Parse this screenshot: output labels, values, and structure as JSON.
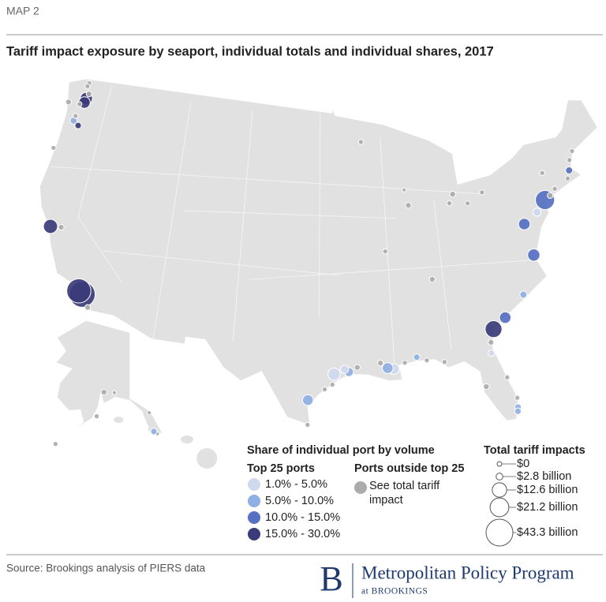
{
  "header": {
    "label": "MAP 2",
    "title": "Tariff impact exposure by seaport, individual totals and individual shares, 2017"
  },
  "map": {
    "ports": [
      {
        "lon": -122.5,
        "lat": 48.75,
        "impact": 1.5,
        "share_class": null
      },
      {
        "lon": -122.6,
        "lat": 48.5,
        "impact": 1.5,
        "share_class": null
      },
      {
        "lon": -122.2,
        "lat": 47.98,
        "impact": 2,
        "share_class": null
      },
      {
        "lon": -122.35,
        "lat": 47.6,
        "impact": 9,
        "share_class": 3
      },
      {
        "lon": -122.43,
        "lat": 47.27,
        "impact": 8,
        "share_class": 3
      },
      {
        "lon": -122.9,
        "lat": 47.05,
        "impact": 1.5,
        "share_class": null
      },
      {
        "lon": -124.1,
        "lat": 46.97,
        "impact": 2,
        "share_class": null
      },
      {
        "lon": -122.95,
        "lat": 46.13,
        "impact": 1.5,
        "share_class": null
      },
      {
        "lon": -123.0,
        "lat": 45.75,
        "impact": 3,
        "share_class": 1
      },
      {
        "lon": -122.4,
        "lat": 45.5,
        "impact": 2.5,
        "share_class": 3
      },
      {
        "lon": -124.2,
        "lat": 43.4,
        "impact": 1.5,
        "share_class": null
      },
      {
        "lon": -121.3,
        "lat": 37.95,
        "impact": 2,
        "share_class": null
      },
      {
        "lon": -122.3,
        "lat": 37.8,
        "impact": 12,
        "share_class": 3
      },
      {
        "lon": -118.27,
        "lat": 33.74,
        "impact": 35,
        "share_class": 3
      },
      {
        "lon": -117.9,
        "lat": 33.55,
        "impact": 40,
        "share_class": 3
      },
      {
        "lon": -117.17,
        "lat": 32.7,
        "impact": 2,
        "share_class": null
      },
      {
        "lon": -92.1,
        "lat": 46.78,
        "impact": 1.5,
        "share_class": null
      },
      {
        "lon": -87.9,
        "lat": 43.04,
        "impact": 1,
        "share_class": null
      },
      {
        "lon": -87.6,
        "lat": 41.88,
        "impact": 2,
        "share_class": null
      },
      {
        "lon": -83.05,
        "lat": 42.33,
        "impact": 2,
        "share_class": null
      },
      {
        "lon": -83.5,
        "lat": 41.7,
        "impact": 1.5,
        "share_class": null
      },
      {
        "lon": -81.7,
        "lat": 41.5,
        "impact": 1.5,
        "share_class": null
      },
      {
        "lon": -80.1,
        "lat": 42.13,
        "impact": 1.5,
        "share_class": null
      },
      {
        "lon": -90.2,
        "lat": 38.63,
        "impact": 1.5,
        "share_class": null
      },
      {
        "lon": -86.0,
        "lat": 36.3,
        "impact": 2,
        "share_class": null
      },
      {
        "lon": -73.75,
        "lat": 42.65,
        "impact": 1.5,
        "share_class": null
      },
      {
        "lon": -70.25,
        "lat": 43.66,
        "impact": 1.5,
        "share_class": null
      },
      {
        "lon": -70.75,
        "lat": 43.08,
        "impact": 1.5,
        "share_class": null
      },
      {
        "lon": -71.05,
        "lat": 42.35,
        "impact": 3,
        "share_class": 2
      },
      {
        "lon": -71.4,
        "lat": 41.8,
        "impact": 1.5,
        "share_class": null
      },
      {
        "lon": -72.9,
        "lat": 41.3,
        "impact": 1.5,
        "share_class": null
      },
      {
        "lon": -73.5,
        "lat": 40.9,
        "impact": 2,
        "share_class": null
      },
      {
        "lon": -74.1,
        "lat": 40.67,
        "impact": 22,
        "share_class": 2
      },
      {
        "lon": -75.13,
        "lat": 39.93,
        "impact": 4,
        "share_class": 0
      },
      {
        "lon": -76.58,
        "lat": 39.27,
        "impact": 8,
        "share_class": 2
      },
      {
        "lon": -76.3,
        "lat": 36.9,
        "impact": 9,
        "share_class": 2
      },
      {
        "lon": -77.95,
        "lat": 34.2,
        "impact": 3,
        "share_class": 1
      },
      {
        "lon": -79.92,
        "lat": 32.78,
        "impact": 8,
        "share_class": 2
      },
      {
        "lon": -81.1,
        "lat": 32.08,
        "impact": 17,
        "share_class": 3
      },
      {
        "lon": -81.5,
        "lat": 31.15,
        "impact": 2,
        "share_class": null
      },
      {
        "lon": -81.6,
        "lat": 30.35,
        "impact": 2.5,
        "share_class": 0
      },
      {
        "lon": -80.6,
        "lat": 28.4,
        "impact": 1.5,
        "share_class": null
      },
      {
        "lon": -80.05,
        "lat": 26.77,
        "impact": 1.5,
        "share_class": null
      },
      {
        "lon": -80.12,
        "lat": 26.08,
        "impact": 2.5,
        "share_class": 1
      },
      {
        "lon": -80.18,
        "lat": 25.77,
        "impact": 2.5,
        "share_class": 1
      },
      {
        "lon": -82.45,
        "lat": 27.95,
        "impact": 2,
        "share_class": null
      },
      {
        "lon": -85.7,
        "lat": 30.15,
        "impact": 1.5,
        "share_class": null
      },
      {
        "lon": -87.2,
        "lat": 30.4,
        "impact": 1.5,
        "share_class": null
      },
      {
        "lon": -88.04,
        "lat": 30.7,
        "impact": 2.5,
        "share_class": 1
      },
      {
        "lon": -89.1,
        "lat": 30.36,
        "impact": 1.5,
        "share_class": null
      },
      {
        "lon": -90.07,
        "lat": 29.95,
        "impact": 7,
        "share_class": 0
      },
      {
        "lon": -90.6,
        "lat": 30.05,
        "impact": 7,
        "share_class": 1
      },
      {
        "lon": -91.2,
        "lat": 30.45,
        "impact": 2,
        "share_class": null
      },
      {
        "lon": -93.2,
        "lat": 30.2,
        "impact": 2,
        "share_class": null
      },
      {
        "lon": -93.93,
        "lat": 29.87,
        "impact": 5,
        "share_class": 1
      },
      {
        "lon": -94.3,
        "lat": 30.08,
        "impact": 4,
        "share_class": 0
      },
      {
        "lon": -95.2,
        "lat": 29.73,
        "impact": 9,
        "share_class": 0
      },
      {
        "lon": -95.35,
        "lat": 28.95,
        "impact": 1.5,
        "share_class": null
      },
      {
        "lon": -96.0,
        "lat": 28.6,
        "impact": 1.5,
        "share_class": null
      },
      {
        "lon": -97.4,
        "lat": 27.8,
        "impact": 7,
        "share_class": 1
      },
      {
        "lon": -97.4,
        "lat": 25.95,
        "impact": 1.5,
        "share_class": null
      }
    ],
    "alaska_ports": [
      {
        "lon": -149.9,
        "lat": 61.2,
        "impact": 2,
        "share_class": null
      },
      {
        "lon": -146.35,
        "lat": 61.13,
        "impact": 1,
        "share_class": null
      },
      {
        "lon": -152.4,
        "lat": 57.8,
        "impact": 1.5,
        "share_class": null
      },
      {
        "lon": -166.5,
        "lat": 53.9,
        "impact": 1.5,
        "share_class": null
      },
      {
        "lon": -134.4,
        "lat": 58.3,
        "impact": 1,
        "share_class": null
      },
      {
        "lon": -131.6,
        "lat": 55.34,
        "impact": 1,
        "share_class": null
      }
    ],
    "hawaii_ports": [
      {
        "lon": -157.9,
        "lat": 21.3,
        "impact": 2.5,
        "share_class": 1
      }
    ],
    "legend": {
      "title": "Share of individual port by volume",
      "top_heading": "Top 25 ports",
      "classes": [
        {
          "label": "1.0% - 5.0%",
          "color": "#cfd9ee"
        },
        {
          "label": "5.0% - 10.0%",
          "color": "#8fb0e2"
        },
        {
          "label": "10.0% - 15.0%",
          "color": "#5670c2"
        },
        {
          "label": "15.0% - 30.0%",
          "color": "#3b3b7a"
        }
      ],
      "outside_heading": "Ports outside top 25",
      "outside_label": "See total tariff impact",
      "outside_color": "#ababab",
      "size_title": "Total tariff impacts",
      "sizes": [
        {
          "value": 0,
          "label": "$0"
        },
        {
          "value": 2.8,
          "label": "$2.8 billion"
        },
        {
          "value": 12.6,
          "label": "$12.6 billion"
        },
        {
          "value": 21.2,
          "label": "$21.2 billion"
        },
        {
          "value": 43.3,
          "label": "$43.3 billion"
        }
      ]
    }
  },
  "footer": {
    "source": "Source: Brookings analysis of PIERS data"
  },
  "logo": {
    "initial": "B",
    "name": "Metropolitan Policy Program",
    "sub": "at BROOKINGS"
  }
}
